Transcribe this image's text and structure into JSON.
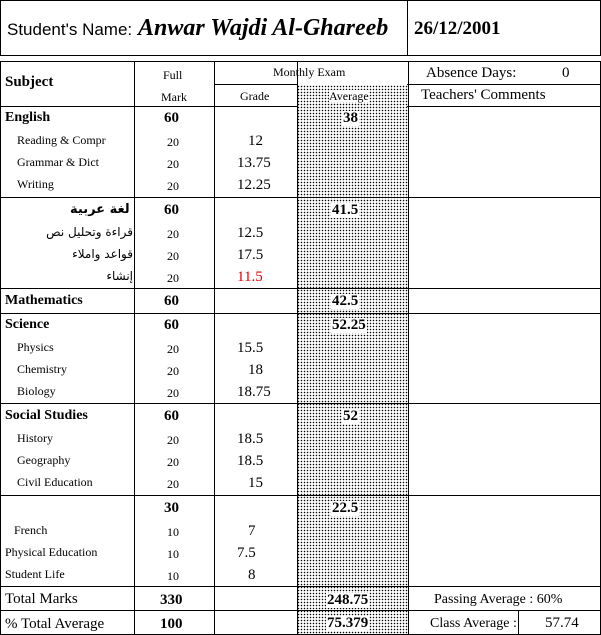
{
  "header": {
    "name_label": "Student's Name:",
    "student_name": "Anwar Wajdi Al-Ghareeb",
    "date": "26/12/2001"
  },
  "columns": {
    "subject": "Subject",
    "full_mark_line1": "Full",
    "full_mark_line2": "Mark",
    "monthly_exam": "Monthly Exam",
    "grade": "Grade",
    "average": "Average",
    "absence_label": "Absence Days:",
    "absence_value": "0",
    "teachers_comments": "Teachers' Comments"
  },
  "groups": [
    {
      "subject": "English",
      "full_mark": "60",
      "average": "38",
      "items": [
        {
          "name": "Reading  & Compr",
          "full_mark": "20",
          "grade": "12"
        },
        {
          "name": "Grammar & Dict",
          "full_mark": "20",
          "grade": "13.75"
        },
        {
          "name": "Writing",
          "full_mark": "20",
          "grade": "12.25"
        }
      ]
    },
    {
      "subject": "لغة عربية",
      "full_mark": "60",
      "average": "41.5",
      "items": [
        {
          "name": "قراءة وتحليل نص",
          "full_mark": "20",
          "grade": "12.5"
        },
        {
          "name": "قواعد واملاء",
          "full_mark": "20",
          "grade": "17.5"
        },
        {
          "name": "إنشاء",
          "full_mark": "20",
          "grade": "11.5",
          "grade_color": "#e00000"
        }
      ]
    },
    {
      "subject": "Mathematics",
      "full_mark": "60",
      "average": "42.5",
      "items": []
    },
    {
      "subject": "Science",
      "full_mark": "60",
      "average": "52.25",
      "items": [
        {
          "name": "Physics",
          "full_mark": "20",
          "grade": "15.5"
        },
        {
          "name": "Chemistry",
          "full_mark": "20",
          "grade": "18"
        },
        {
          "name": "Biology",
          "full_mark": "20",
          "grade": "18.75"
        }
      ]
    },
    {
      "subject": "Social Studies",
      "full_mark": "60",
      "average": "52",
      "items": [
        {
          "name": "History",
          "full_mark": "20",
          "grade": "18.5"
        },
        {
          "name": "Geography",
          "full_mark": "20",
          "grade": "18.5"
        },
        {
          "name": "Civil Education",
          "full_mark": "20",
          "grade": "15"
        }
      ]
    },
    {
      "subject": "",
      "full_mark": "30",
      "average": "22.5",
      "items": [
        {
          "name": "French",
          "full_mark": "10",
          "grade": "7"
        },
        {
          "name": "Physical Education",
          "full_mark": "10",
          "grade": "7.5"
        },
        {
          "name": "Student Life",
          "full_mark": "10",
          "grade": "8"
        }
      ]
    }
  ],
  "totals": {
    "total_label": "Total Marks",
    "total_full": "330",
    "total_average": "248.75",
    "percent_label": "% Total Average",
    "percent_full": "100",
    "percent_average": "75.379",
    "passing_label": "Passing Average : 60%",
    "class_label": "Class Average :",
    "class_value": "57.74"
  }
}
